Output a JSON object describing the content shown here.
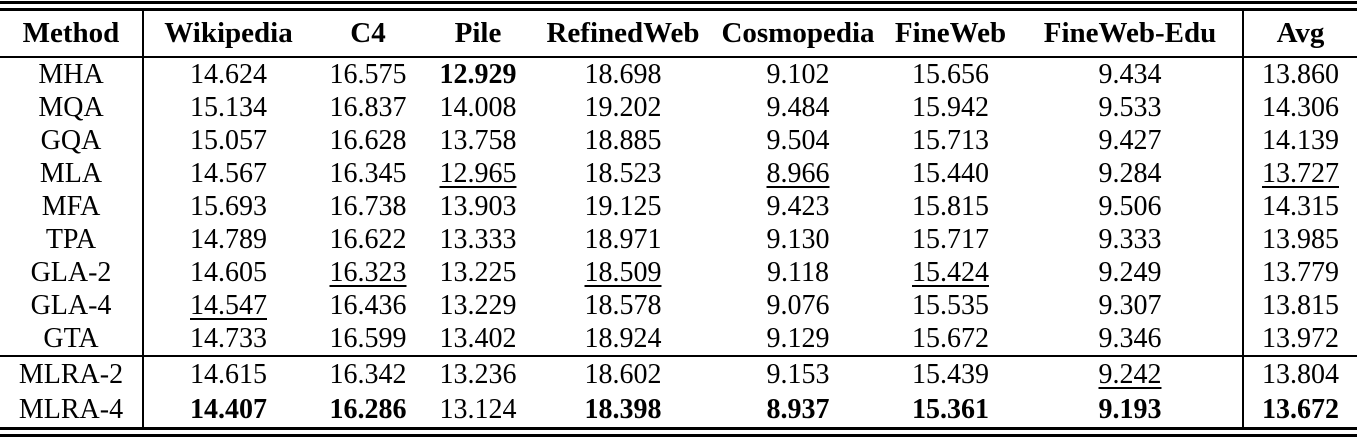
{
  "colors": {
    "text": "#000000",
    "background": "#ffffff",
    "rules": "#000000"
  },
  "table": {
    "columns": [
      "Method",
      "Wikipedia",
      "C4",
      "Pile",
      "RefinedWeb",
      "Cosmopedia",
      "FineWeb",
      "FineWeb-Edu",
      "Avg"
    ],
    "sections": [
      {
        "rows": [
          {
            "method": "MHA",
            "cells": [
              {
                "v": "14.624"
              },
              {
                "v": "16.575"
              },
              {
                "v": "12.929",
                "b": true
              },
              {
                "v": "18.698"
              },
              {
                "v": "9.102"
              },
              {
                "v": "15.656"
              },
              {
                "v": "9.434"
              },
              {
                "v": "13.860"
              }
            ]
          },
          {
            "method": "MQA",
            "cells": [
              {
                "v": "15.134"
              },
              {
                "v": "16.837"
              },
              {
                "v": "14.008"
              },
              {
                "v": "19.202"
              },
              {
                "v": "9.484"
              },
              {
                "v": "15.942"
              },
              {
                "v": "9.533"
              },
              {
                "v": "14.306"
              }
            ]
          },
          {
            "method": "GQA",
            "cells": [
              {
                "v": "15.057"
              },
              {
                "v": "16.628"
              },
              {
                "v": "13.758"
              },
              {
                "v": "18.885"
              },
              {
                "v": "9.504"
              },
              {
                "v": "15.713"
              },
              {
                "v": "9.427"
              },
              {
                "v": "14.139"
              }
            ]
          },
          {
            "method": "MLA",
            "cells": [
              {
                "v": "14.567"
              },
              {
                "v": "16.345"
              },
              {
                "v": "12.965",
                "u": true
              },
              {
                "v": "18.523"
              },
              {
                "v": "8.966",
                "u": true
              },
              {
                "v": "15.440"
              },
              {
                "v": "9.284"
              },
              {
                "v": "13.727",
                "u": true
              }
            ]
          },
          {
            "method": "MFA",
            "cells": [
              {
                "v": "15.693"
              },
              {
                "v": "16.738"
              },
              {
                "v": "13.903"
              },
              {
                "v": "19.125"
              },
              {
                "v": "9.423"
              },
              {
                "v": "15.815"
              },
              {
                "v": "9.506"
              },
              {
                "v": "14.315"
              }
            ]
          },
          {
            "method": "TPA",
            "cells": [
              {
                "v": "14.789"
              },
              {
                "v": "16.622"
              },
              {
                "v": "13.333"
              },
              {
                "v": "18.971"
              },
              {
                "v": "9.130"
              },
              {
                "v": "15.717"
              },
              {
                "v": "9.333"
              },
              {
                "v": "13.985"
              }
            ]
          },
          {
            "method": "GLA-2",
            "cells": [
              {
                "v": "14.605"
              },
              {
                "v": "16.323",
                "u": true
              },
              {
                "v": "13.225"
              },
              {
                "v": "18.509",
                "u": true
              },
              {
                "v": "9.118"
              },
              {
                "v": "15.424",
                "u": true
              },
              {
                "v": "9.249"
              },
              {
                "v": "13.779"
              }
            ]
          },
          {
            "method": "GLA-4",
            "cells": [
              {
                "v": "14.547",
                "u": true
              },
              {
                "v": "16.436"
              },
              {
                "v": "13.229"
              },
              {
                "v": "18.578"
              },
              {
                "v": "9.076"
              },
              {
                "v": "15.535"
              },
              {
                "v": "9.307"
              },
              {
                "v": "13.815"
              }
            ]
          },
          {
            "method": "GTA",
            "cells": [
              {
                "v": "14.733"
              },
              {
                "v": "16.599"
              },
              {
                "v": "13.402"
              },
              {
                "v": "18.924"
              },
              {
                "v": "9.129"
              },
              {
                "v": "15.672"
              },
              {
                "v": "9.346"
              },
              {
                "v": "13.972"
              }
            ]
          }
        ]
      },
      {
        "rows": [
          {
            "method": "MLRA-2",
            "cells": [
              {
                "v": "14.615"
              },
              {
                "v": "16.342"
              },
              {
                "v": "13.236"
              },
              {
                "v": "18.602"
              },
              {
                "v": "9.153"
              },
              {
                "v": "15.439"
              },
              {
                "v": "9.242",
                "u": true
              },
              {
                "v": "13.804"
              }
            ]
          },
          {
            "method": "MLRA-4",
            "cells": [
              {
                "v": "14.407",
                "b": true
              },
              {
                "v": "16.286",
                "b": true
              },
              {
                "v": "13.124"
              },
              {
                "v": "18.398",
                "b": true
              },
              {
                "v": "8.937",
                "b": true
              },
              {
                "v": "15.361",
                "b": true
              },
              {
                "v": "9.193",
                "b": true
              },
              {
                "v": "13.672",
                "b": true
              }
            ]
          }
        ]
      }
    ]
  }
}
